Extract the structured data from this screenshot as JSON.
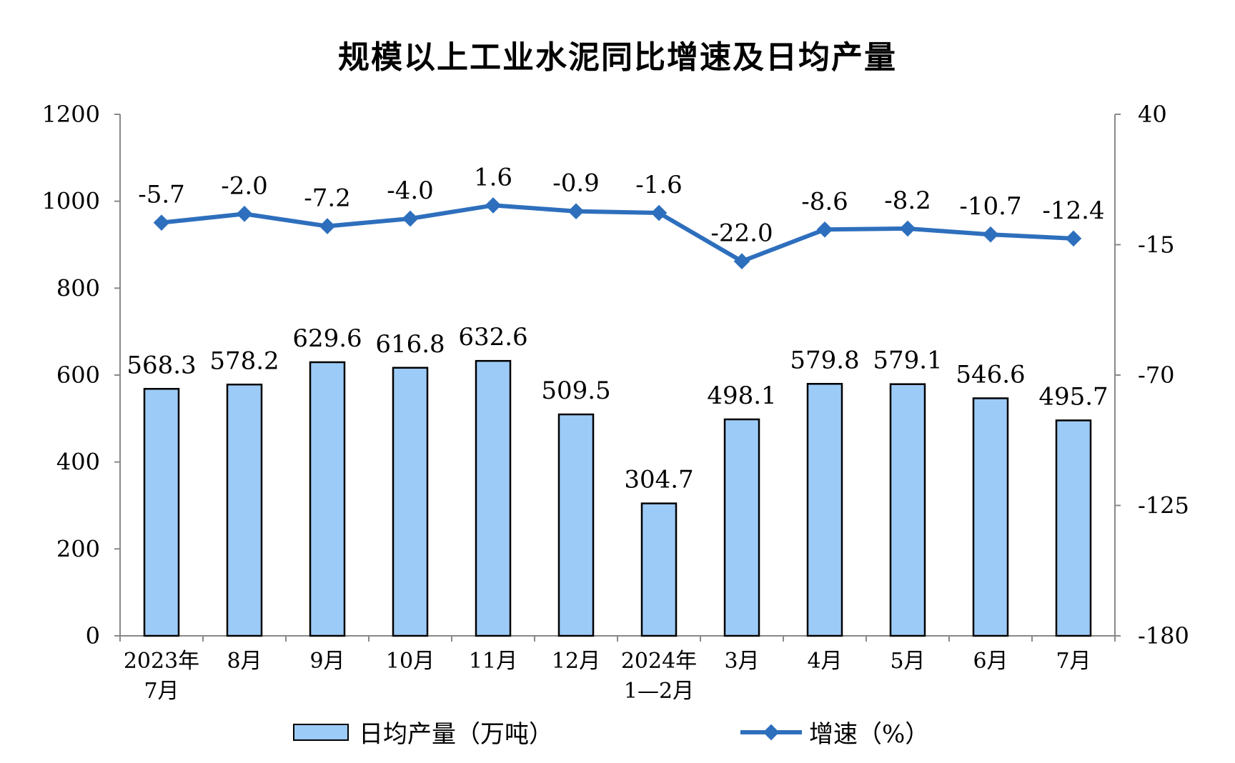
{
  "chart_data": {
    "type": "bar",
    "title": "规模以上工业水泥同比增速及日均产量",
    "categories": [
      [
        "2023年",
        "7月"
      ],
      [
        "8月"
      ],
      [
        "9月"
      ],
      [
        "10月"
      ],
      [
        "11月"
      ],
      [
        "12月"
      ],
      [
        "2024年",
        "1—2月"
      ],
      [
        "3月"
      ],
      [
        "4月"
      ],
      [
        "5月"
      ],
      [
        "6月"
      ],
      [
        "7月"
      ]
    ],
    "series": [
      {
        "name": "日均产量（万吨）",
        "type": "bar",
        "axis": "left",
        "color": "#9dcbf7",
        "values": [
          568.3,
          578.2,
          629.6,
          616.8,
          632.6,
          509.5,
          304.7,
          498.1,
          579.8,
          579.1,
          546.6,
          495.7
        ],
        "labels": [
          "568.3",
          "578.2",
          "629.6",
          "616.8",
          "632.6",
          "509.5",
          "304.7",
          "498.1",
          "579.8",
          "579.1",
          "546.6",
          "495.7"
        ]
      },
      {
        "name": "增速（%）",
        "type": "line",
        "axis": "right",
        "color": "#2e6fbd",
        "values": [
          -5.7,
          -2.0,
          -7.2,
          -4.0,
          1.6,
          -0.9,
          -1.6,
          -22.0,
          -8.6,
          -8.2,
          -10.7,
          -12.4
        ],
        "labels": [
          "-5.7",
          "-2.0",
          "-7.2",
          "-4.0",
          "1.6",
          "-0.9",
          "-1.6",
          "-22.0",
          "-8.6",
          "-8.2",
          "-10.7",
          "-12.4"
        ]
      }
    ],
    "y_left": {
      "min": 0,
      "max": 1200,
      "ticks": [
        0,
        200,
        400,
        600,
        800,
        1000,
        1200
      ]
    },
    "y_right": {
      "min": -180,
      "max": 40,
      "ticks": [
        -180,
        -125,
        -70,
        -15,
        40
      ]
    },
    "legend_position": "bottom",
    "grid": false
  }
}
